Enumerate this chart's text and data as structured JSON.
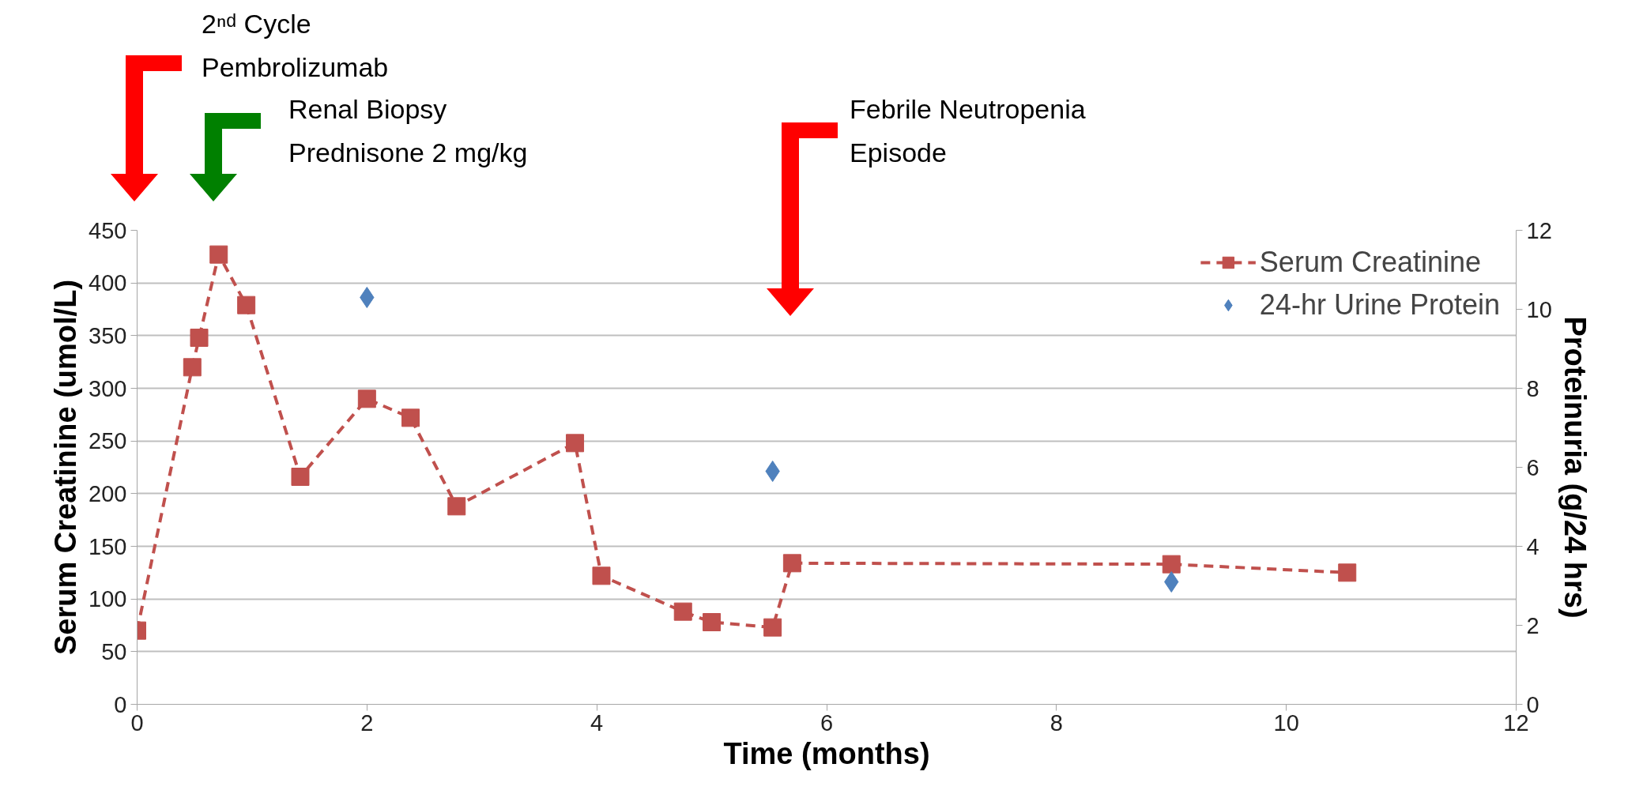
{
  "chart_data": {
    "type": "line",
    "xlabel": "Time (months)",
    "ylabel": "Serum Creatinine (umol/L)",
    "y2label": "Proteinuria (g/24 hrs)",
    "xlim": [
      0,
      12
    ],
    "xticks": [
      0,
      2,
      4,
      6,
      8,
      10,
      12
    ],
    "ylim": [
      0,
      450
    ],
    "yticks": [
      0,
      50,
      100,
      150,
      200,
      250,
      300,
      350,
      400,
      450
    ],
    "y2lim": [
      0,
      12
    ],
    "y2ticks": [
      0,
      2,
      4,
      6,
      8,
      10,
      12
    ],
    "grid": "y",
    "legend": "top right",
    "annotations": [
      "2ⁿᵈ Cycle\nPembrolizumab",
      "Renal Biopsy\nPrednisone 2 mg/kg",
      "Febrile Neutropenia\nEpisode"
    ],
    "series": [
      {
        "name": "Serum Creatinine",
        "color": "#c0504d",
        "marker": "square",
        "line_style": "dashed",
        "x": [
          0,
          0.48,
          0.54,
          0.71,
          0.95,
          1.42,
          2.0,
          2.38,
          2.78,
          3.81,
          4.04,
          4.75,
          5.0,
          5.53,
          5.7,
          9.0,
          10.53
        ],
        "values": [
          70,
          320,
          348,
          427,
          379,
          216,
          290,
          272,
          188,
          248,
          122,
          88,
          78,
          73,
          134,
          133,
          125
        ]
      },
      {
        "name": "24-hr Urine Protein",
        "type": "scatter",
        "color": "#4f81bd",
        "marker": "diamond",
        "axis": "y2",
        "x": [
          2.0,
          5.53,
          9.0
        ],
        "values": [
          10.3,
          5.9,
          3.1
        ]
      }
    ]
  }
}
